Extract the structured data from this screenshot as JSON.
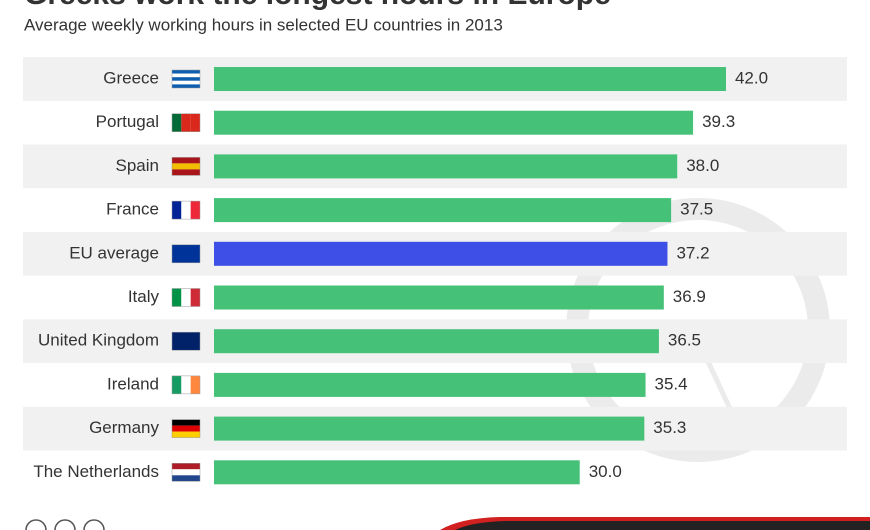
{
  "chart_data": {
    "type": "bar",
    "orientation": "horizontal",
    "title": "Greeks work the longest hours in Europe",
    "subtitle": "Average weekly working hours in selected EU countries in 2013",
    "categories": [
      "Greece",
      "Portugal",
      "Spain",
      "France",
      "EU average",
      "Italy",
      "United Kingdom",
      "Ireland",
      "Germany",
      "The Netherlands"
    ],
    "values": [
      42.0,
      39.3,
      38.0,
      37.5,
      37.2,
      36.9,
      36.5,
      35.4,
      35.3,
      30.0
    ],
    "value_labels": [
      "42.0",
      "39.3",
      "38.0",
      "37.5",
      "37.2",
      "36.9",
      "36.5",
      "35.4",
      "35.3",
      "30.0"
    ],
    "colors": [
      "#45c178",
      "#45c178",
      "#45c178",
      "#45c178",
      "#3d4fe6",
      "#45c178",
      "#45c178",
      "#45c178",
      "#45c178",
      "#45c178"
    ]
  }
}
